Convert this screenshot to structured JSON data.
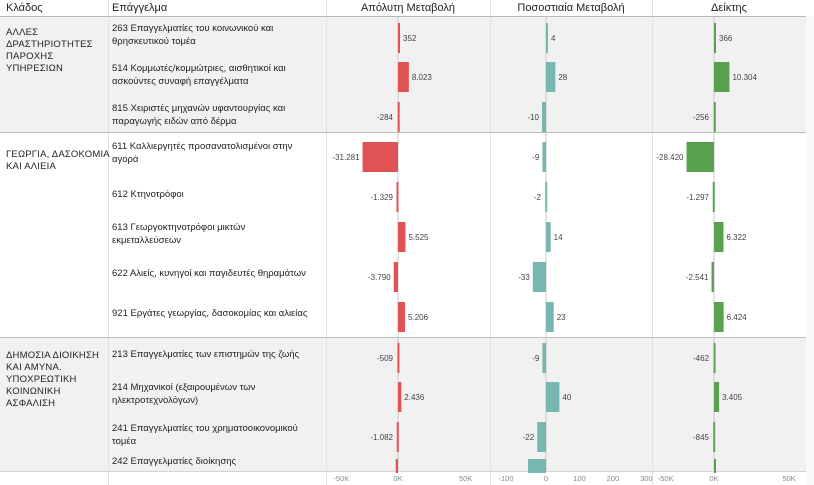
{
  "headers": {
    "sector": "Κλάδος",
    "occupation": "Επάγγελμα",
    "absolute": "Απόλυτη Μεταβολή",
    "percent": "Ποσοστιαία Μεταβολή",
    "index": "Δείκτης"
  },
  "colors": {
    "absolute": "#e05355",
    "percent": "#76b7b2",
    "index": "#59a14f"
  },
  "sectors": [
    "ΑΛΛΕΣ ΔΡΑΣΤΗΡΙΟΤΗΤΕΣ ΠΑΡΟΧΗΣ ΥΠΗΡΕΣΙΩΝ",
    "ΓΕΩΡΓΙΑ, ΔΑΣΟΚΟΜΙΑ ΚΑΙ ΑΛΙΕΙΑ",
    "ΔΗΜΟΣΙΑ ΔΙΟΙΚΗΣΗ ΚΑΙ ΑΜΥΝΑ. ΥΠΟΧΡΕΩΤΙΚΗ ΚΟΙΝΩΝΙΚΗ ΑΣΦΑΛΙΣΗ"
  ],
  "chart_data": {
    "type": "bar",
    "orientation": "horizontal",
    "title": "",
    "categories": [
      "263 Επαγγελματίες του κοινωνικού και θρησκευτικού τομέα",
      "514 Κομμωτές/κομμώτριες, αισθητικοί και ασκούντες συναφή επαγγέλματα",
      "815 Χειριστές μηχανών υφαντουργίας και παραγωγής ειδών από δέρμα",
      "611 Καλλιεργητές προσανατολισμένοι στην αγορά",
      "612 Κτηνοτρόφοι",
      "613 Γεωργοκτηνοτρόφοι μικτών εκμεταλλεύσεων",
      "622 Αλιείς, κυνηγοί και παγιδευτές θηραμάτων",
      "921 Εργάτες γεωργίας, δασοκομίας και αλιείας",
      "213 Επαγγελματίες των επιστημών της ζωής",
      "214 Μηχανικοί (εξαιρουμένων των ηλεκτροτεχνολόγων)",
      "241 Επαγγελματίες του χρηματοοικονομικού τομέα",
      "242 Επαγγελματίες διοίκησης"
    ],
    "sector_of_category": [
      0,
      0,
      0,
      1,
      1,
      1,
      1,
      1,
      2,
      2,
      2,
      2
    ],
    "series": [
      {
        "name": "Απόλυτη Μεταβολή",
        "values": [
          352,
          8023,
          -284,
          -31281,
          -1329,
          5525,
          -3790,
          5206,
          -509,
          2436,
          -1082,
          -2000
        ],
        "labels": [
          "352",
          "8.023",
          "-284",
          "-31.281",
          "-1.329",
          "5.525",
          "-3.790",
          "5.206",
          "-509",
          "2.436",
          "-1.082",
          ""
        ],
        "xlim": [
          -60000,
          65000
        ],
        "ticks": [
          -50000,
          0,
          50000
        ],
        "tick_labels": [
          "-50K",
          "0K",
          "50K"
        ]
      },
      {
        "name": "Ποσοστιαία Μεταβολή",
        "values": [
          4,
          28,
          -10,
          -9,
          -2,
          14,
          -33,
          23,
          -9,
          40,
          -22,
          -45
        ],
        "labels": [
          "4",
          "28",
          "-10",
          "-9",
          "-2",
          "14",
          "-33",
          "23",
          "-9",
          "40",
          "-22",
          ""
        ],
        "xlim": [
          -130,
          305
        ],
        "ticks": [
          -100,
          0,
          100,
          200,
          300
        ],
        "tick_labels": [
          "-100",
          "0",
          "100",
          "200",
          "300"
        ]
      },
      {
        "name": "Δείκτης",
        "values": [
          366,
          10304,
          -256,
          -28420,
          -1297,
          6322,
          -2541,
          6424,
          -462,
          3405,
          -845,
          800
        ],
        "labels": [
          "366",
          "10.304",
          "-256",
          "-28.420",
          "-1.297",
          "6.322",
          "-2.541",
          "6.424",
          "-462",
          "3.405",
          "-845",
          ""
        ],
        "xlim": [
          -60000,
          60000
        ],
        "ticks": [
          -50000,
          0,
          50000
        ],
        "tick_labels": [
          "-50K",
          "0K",
          "50K"
        ]
      }
    ],
    "xlabel": "",
    "ylabel": ""
  }
}
